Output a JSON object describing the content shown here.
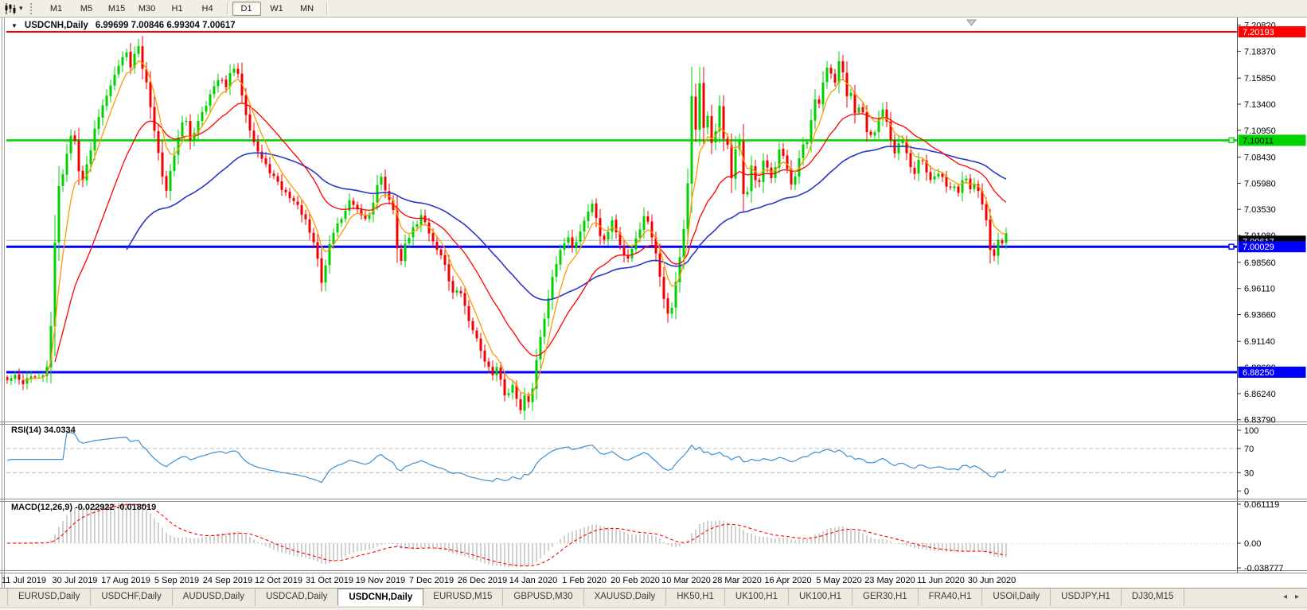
{
  "toolbar": {
    "chart_menu_icon": "candlestick-chart-icon",
    "dropdown_glyph": "▾",
    "timeframes": [
      "M1",
      "M5",
      "M15",
      "M30",
      "H1",
      "H4",
      "D1",
      "W1",
      "MN"
    ],
    "active_timeframe": "D1"
  },
  "chart": {
    "title_marker": "▼",
    "symbol": "USDCNH,Daily",
    "ohlc": "6.99699 7.00846 6.99304 7.00617",
    "y_ticks": [
      "7.20820",
      "7.18370",
      "7.15850",
      "7.13400",
      "7.10950",
      "7.08430",
      "7.05980",
      "7.03530",
      "7.01080",
      "6.98560",
      "6.96110",
      "6.93660",
      "6.91140",
      "6.88690",
      "6.86240",
      "6.83790"
    ],
    "x_labels": [
      "11 Jul 2019",
      "30 Jul 2019",
      "17 Aug 2019",
      "5 Sep 2019",
      "24 Sep 2019",
      "12 Oct 2019",
      "31 Oct 2019",
      "19 Nov 2019",
      "7 Dec 2019",
      "26 Dec 2019",
      "14 Jan 2020",
      "1 Feb 2020",
      "20 Feb 2020",
      "10 Mar 2020",
      "28 Mar 2020",
      "16 Apr 2020",
      "5 May 2020",
      "23 May 2020",
      "11 Jun 2020",
      "30 Jun 2020"
    ],
    "levels": [
      {
        "price": 7.20193,
        "label": "7.20193",
        "color": "#ff0000",
        "width": 2,
        "badge_bg": "#ff0000",
        "badge_fg": "#ffffff",
        "handle": false
      },
      {
        "price": 7.10011,
        "label": "7.10011",
        "color": "#00d400",
        "width": 2.6,
        "badge_bg": "#00d400",
        "badge_fg": "#000000",
        "handle": true
      },
      {
        "price": 7.00029,
        "label": "7.00029",
        "color": "#0000ff",
        "width": 3,
        "badge_bg": "#0000ff",
        "badge_fg": "#ffffff",
        "handle": true
      },
      {
        "price": 6.8825,
        "label": "6.88250",
        "color": "#0000ff",
        "width": 3,
        "badge_bg": "#0000ff",
        "badge_fg": "#ffffff",
        "handle": false
      }
    ],
    "current_price": {
      "price": 7.00617,
      "label": "7.00617",
      "line_color": "#b6b6b6",
      "badge_bg": "#000000",
      "badge_fg": "#ffffff"
    },
    "colors": {
      "up": "#00d000",
      "down": "#f20000",
      "ma_fast": "#ff9a00",
      "ma_mid": "#ff0000",
      "ma_slow": "#2838c8"
    },
    "price_anchors": [
      [
        8,
        6.874
      ],
      [
        18,
        6.879
      ],
      [
        28,
        6.872
      ],
      [
        38,
        6.88
      ],
      [
        48,
        6.875
      ],
      [
        56,
        6.881
      ],
      [
        62,
        6.896
      ],
      [
        66,
        6.952
      ],
      [
        70,
        7.02
      ],
      [
        74,
        7.058
      ],
      [
        80,
        7.072
      ],
      [
        86,
        7.095
      ],
      [
        92,
        7.112
      ],
      [
        97,
        7.08
      ],
      [
        103,
        7.06
      ],
      [
        109,
        7.076
      ],
      [
        115,
        7.096
      ],
      [
        121,
        7.118
      ],
      [
        129,
        7.134
      ],
      [
        137,
        7.15
      ],
      [
        145,
        7.162
      ],
      [
        152,
        7.176
      ],
      [
        158,
        7.189
      ],
      [
        163,
        7.164
      ],
      [
        168,
        7.179
      ],
      [
        173,
        7.191
      ],
      [
        179,
        7.168
      ],
      [
        185,
        7.152
      ],
      [
        191,
        7.124
      ],
      [
        197,
        7.098
      ],
      [
        203,
        7.068
      ],
      [
        209,
        7.054
      ],
      [
        215,
        7.074
      ],
      [
        221,
        7.094
      ],
      [
        227,
        7.114
      ],
      [
        233,
        7.12
      ],
      [
        239,
        7.1
      ],
      [
        245,
        7.11
      ],
      [
        251,
        7.124
      ],
      [
        257,
        7.131
      ],
      [
        263,
        7.141
      ],
      [
        269,
        7.15
      ],
      [
        276,
        7.158
      ],
      [
        283,
        7.15
      ],
      [
        290,
        7.163
      ],
      [
        296,
        7.17
      ],
      [
        302,
        7.151
      ],
      [
        310,
        7.122
      ],
      [
        318,
        7.101
      ],
      [
        326,
        7.086
      ],
      [
        334,
        7.076
      ],
      [
        342,
        7.068
      ],
      [
        350,
        7.058
      ],
      [
        358,
        7.051
      ],
      [
        366,
        7.046
      ],
      [
        374,
        7.038
      ],
      [
        382,
        7.028
      ],
      [
        390,
        7.011
      ],
      [
        398,
        6.994
      ],
      [
        404,
        6.966
      ],
      [
        410,
        6.987
      ],
      [
        416,
        7.01
      ],
      [
        424,
        7.021
      ],
      [
        432,
        7.031
      ],
      [
        440,
        7.044
      ],
      [
        446,
        7.036
      ],
      [
        454,
        7.028
      ],
      [
        462,
        7.026
      ],
      [
        468,
        7.039
      ],
      [
        474,
        7.06
      ],
      [
        480,
        7.066
      ],
      [
        486,
        7.048
      ],
      [
        492,
        7.038
      ],
      [
        497,
        7.025
      ],
      [
        501,
        6.976
      ],
      [
        507,
        6.998
      ],
      [
        513,
        7.009
      ],
      [
        521,
        7.019
      ],
      [
        529,
        7.029
      ],
      [
        535,
        7.021
      ],
      [
        543,
        7.007
      ],
      [
        551,
        6.996
      ],
      [
        559,
        6.984
      ],
      [
        565,
        6.966
      ],
      [
        571,
        6.952
      ],
      [
        577,
        6.963
      ],
      [
        583,
        6.946
      ],
      [
        589,
        6.931
      ],
      [
        595,
        6.922
      ],
      [
        601,
        6.908
      ],
      [
        607,
        6.898
      ],
      [
        613,
        6.888
      ],
      [
        619,
        6.879
      ],
      [
        625,
        6.887
      ],
      [
        631,
        6.867
      ],
      [
        637,
        6.857
      ],
      [
        643,
        6.873
      ],
      [
        649,
        6.859
      ],
      [
        655,
        6.847
      ],
      [
        660,
        6.863
      ],
      [
        666,
        6.849
      ],
      [
        671,
        6.881
      ],
      [
        677,
        6.909
      ],
      [
        683,
        6.931
      ],
      [
        689,
        6.953
      ],
      [
        695,
        6.973
      ],
      [
        701,
        6.989
      ],
      [
        707,
        7.001
      ],
      [
        713,
        7.013
      ],
      [
        719,
        6.999
      ],
      [
        725,
        7.007
      ],
      [
        731,
        7.019
      ],
      [
        737,
        7.031
      ],
      [
        745,
        7.041
      ],
      [
        751,
        7.021
      ],
      [
        757,
        7.001
      ],
      [
        763,
        7.013
      ],
      [
        769,
        7.025
      ],
      [
        775,
        7.011
      ],
      [
        781,
        6.997
      ],
      [
        787,
        6.987
      ],
      [
        793,
        6.997
      ],
      [
        799,
        7.009
      ],
      [
        805,
        7.019
      ],
      [
        811,
        7.033
      ],
      [
        817,
        7.017
      ],
      [
        823,
        6.997
      ],
      [
        829,
        6.973
      ],
      [
        835,
        6.949
      ],
      [
        841,
        6.933
      ],
      [
        847,
        6.957
      ],
      [
        853,
        6.987
      ],
      [
        858,
        7.011
      ],
      [
        863,
        7.041
      ],
      [
        867,
        7.118
      ],
      [
        870,
        7.152
      ],
      [
        873,
        7.092
      ],
      [
        876,
        7.141
      ],
      [
        880,
        7.156
      ],
      [
        884,
        7.112
      ],
      [
        888,
        7.131
      ],
      [
        892,
        7.106
      ],
      [
        896,
        7.086
      ],
      [
        900,
        7.116
      ],
      [
        904,
        7.131
      ],
      [
        908,
        7.096
      ],
      [
        912,
        7.111
      ],
      [
        916,
        7.081
      ],
      [
        920,
        7.061
      ],
      [
        924,
        7.091
      ],
      [
        928,
        7.111
      ],
      [
        932,
        7.061
      ],
      [
        936,
        7.041
      ],
      [
        940,
        7.056
      ],
      [
        944,
        7.076
      ],
      [
        948,
        7.063
      ],
      [
        952,
        7.053
      ],
      [
        956,
        7.069
      ],
      [
        960,
        7.083
      ],
      [
        964,
        7.073
      ],
      [
        968,
        7.061
      ],
      [
        972,
        7.071
      ],
      [
        976,
        7.083
      ],
      [
        980,
        7.097
      ],
      [
        984,
        7.087
      ],
      [
        988,
        7.077
      ],
      [
        992,
        7.063
      ],
      [
        996,
        7.053
      ],
      [
        1000,
        7.069
      ],
      [
        1004,
        7.081
      ],
      [
        1008,
        7.097
      ],
      [
        1012,
        7.089
      ],
      [
        1016,
        7.107
      ],
      [
        1020,
        7.121
      ],
      [
        1024,
        7.137
      ],
      [
        1028,
        7.129
      ],
      [
        1032,
        7.149
      ],
      [
        1036,
        7.161
      ],
      [
        1040,
        7.171
      ],
      [
        1044,
        7.161
      ],
      [
        1048,
        7.151
      ],
      [
        1052,
        7.161
      ],
      [
        1056,
        7.189
      ],
      [
        1060,
        7.153
      ],
      [
        1064,
        7.141
      ],
      [
        1068,
        7.151
      ],
      [
        1072,
        7.129
      ],
      [
        1076,
        7.119
      ],
      [
        1080,
        7.137
      ],
      [
        1084,
        7.127
      ],
      [
        1088,
        7.113
      ],
      [
        1092,
        7.101
      ],
      [
        1096,
        7.113
      ],
      [
        1100,
        7.105
      ],
      [
        1104,
        7.119
      ],
      [
        1108,
        7.129
      ],
      [
        1112,
        7.121
      ],
      [
        1116,
        7.111
      ],
      [
        1120,
        7.097
      ],
      [
        1124,
        7.087
      ],
      [
        1128,
        7.097
      ],
      [
        1132,
        7.105
      ],
      [
        1136,
        7.097
      ],
      [
        1140,
        7.087
      ],
      [
        1144,
        7.077
      ],
      [
        1148,
        7.067
      ],
      [
        1152,
        7.077
      ],
      [
        1156,
        7.087
      ],
      [
        1160,
        7.079
      ],
      [
        1164,
        7.069
      ],
      [
        1168,
        7.059
      ],
      [
        1172,
        7.069
      ],
      [
        1176,
        7.061
      ],
      [
        1180,
        7.073
      ],
      [
        1184,
        7.065
      ],
      [
        1188,
        7.055
      ],
      [
        1192,
        7.061
      ],
      [
        1196,
        7.051
      ],
      [
        1200,
        7.059
      ],
      [
        1204,
        7.051
      ],
      [
        1208,
        7.061
      ],
      [
        1212,
        7.069
      ],
      [
        1216,
        7.061
      ],
      [
        1220,
        7.053
      ],
      [
        1224,
        7.061
      ],
      [
        1228,
        7.055
      ],
      [
        1232,
        7.045
      ],
      [
        1236,
        7.037
      ],
      [
        1240,
        7.021
      ],
      [
        1244,
        6.997
      ],
      [
        1248,
        6.987
      ],
      [
        1252,
        7.003
      ],
      [
        1256,
        7.011
      ],
      [
        1260,
        7.003
      ],
      [
        1264,
        7.013
      ],
      [
        1268,
        7.00617
      ]
    ]
  },
  "rsi": {
    "label": "RSI(14) 34.0334",
    "period": 14,
    "last_value": "34.0334",
    "axis_labels": [
      "100",
      "70",
      "30",
      "0"
    ],
    "line_color": "#3e8ed0",
    "level_line_color": "#bdbdbd"
  },
  "macd": {
    "label": "MACD(12,26,9) -0.022922 -0.018019",
    "main_value": "-0.022922",
    "signal_value": "-0.018019",
    "axis_labels": [
      "0.061119",
      "0.00",
      "-0.038777"
    ],
    "histogram_color": "#b6b6b6",
    "signal_color": "#ff0000"
  },
  "tabs": {
    "items": [
      "EURUSD,Daily",
      "USDCHF,Daily",
      "AUDUSD,Daily",
      "USDCAD,Daily",
      "USDCNH,Daily",
      "EURUSD,M15",
      "GBPUSD,M30",
      "XAUUSD,Daily",
      "HK50,H1",
      "UK100,H1",
      "UK100,H1",
      "GER30,H1",
      "FRA40,H1",
      "USOil,Daily",
      "USDJPY,H1",
      "DJ30,M15"
    ],
    "active_index": 4,
    "scroll_left_glyph": "◂",
    "scroll_right_glyph": "▸"
  }
}
